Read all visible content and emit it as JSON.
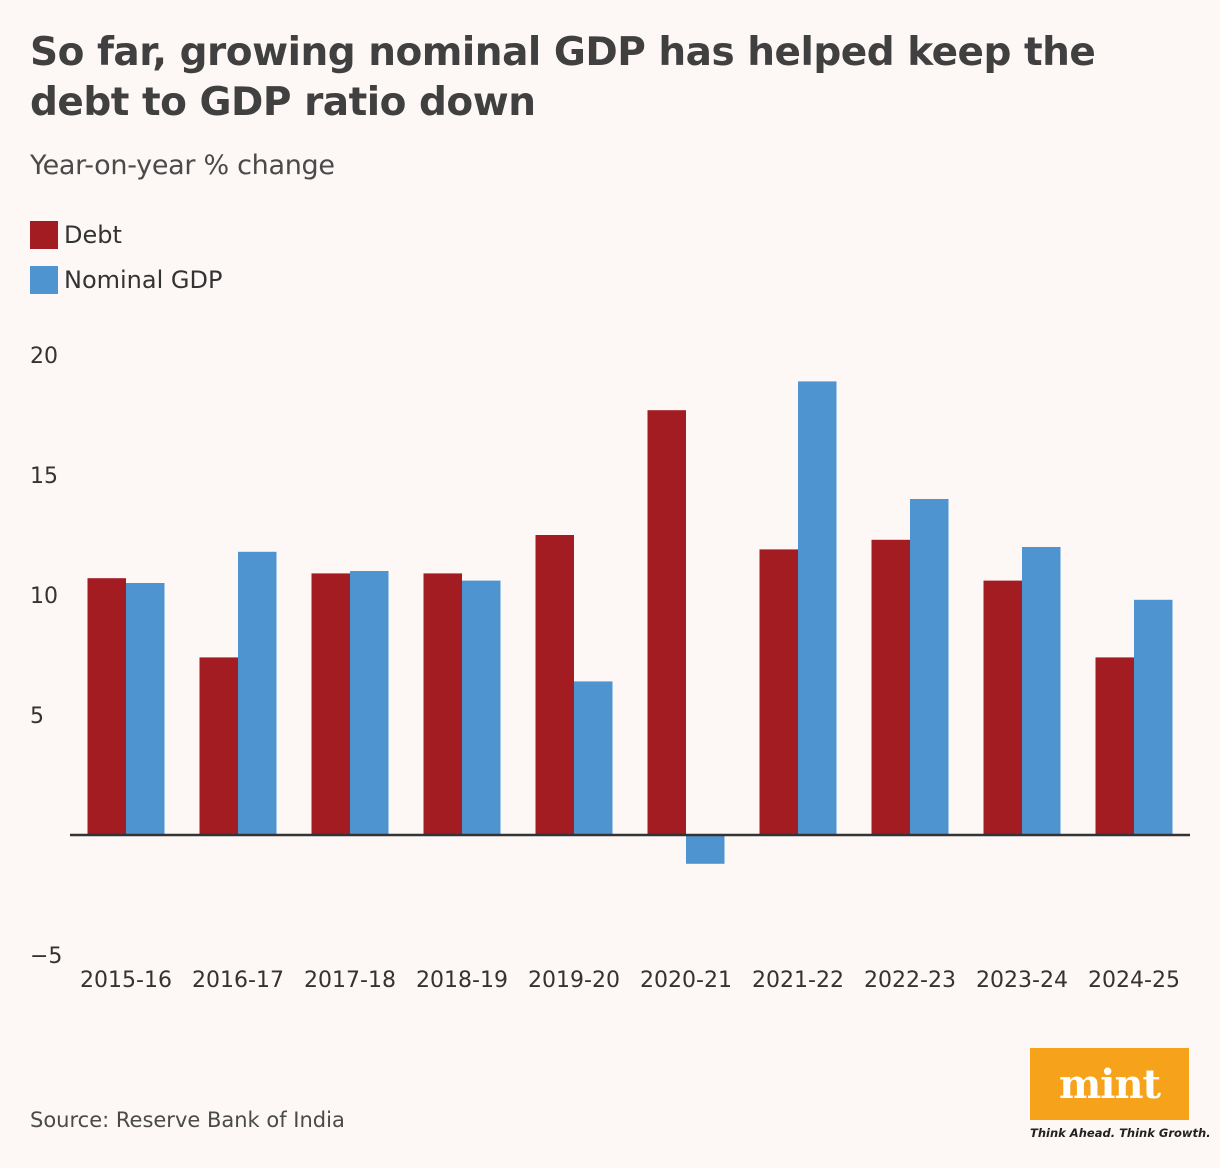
{
  "header": {
    "title": "So far, growing nominal GDP has helped keep the debt to GDP ratio down",
    "subtitle": "Year-on-year % change"
  },
  "footer": {
    "source": "Source: Reserve Bank of India",
    "logo_text": "mint",
    "tagline": "Think Ahead. Think Growth."
  },
  "colors": {
    "debt": "#a31c22",
    "gdp": "#4e94d0",
    "logo": "#f7a21b",
    "background": "#fdf8f6"
  },
  "chart_data": {
    "type": "bar",
    "title": "So far, growing nominal GDP has helped keep the debt to GDP ratio down",
    "subtitle": "Year-on-year % change",
    "xlabel": "",
    "ylabel": "",
    "categories": [
      "2015-16",
      "2016-17",
      "2017-18",
      "2018-19",
      "2019-20",
      "2020-21",
      "2021-22",
      "2022-23",
      "2023-24",
      "2024-25"
    ],
    "series": [
      {
        "name": "Debt",
        "color": "#a31c22",
        "values": [
          10.7,
          7.4,
          10.9,
          10.9,
          12.5,
          17.7,
          11.9,
          12.3,
          10.6,
          7.4
        ]
      },
      {
        "name": "Nominal GDP",
        "color": "#4e94d0",
        "values": [
          10.5,
          11.8,
          11.0,
          10.6,
          6.4,
          -1.2,
          18.9,
          14.0,
          12.0,
          9.8
        ]
      }
    ],
    "yticks": [
      "20",
      "15",
      "10",
      "5",
      "−5"
    ],
    "ytick_values": [
      20,
      15,
      10,
      5,
      -5
    ],
    "ylim": [
      -5,
      20
    ],
    "grid": false,
    "legend": "top-left"
  }
}
